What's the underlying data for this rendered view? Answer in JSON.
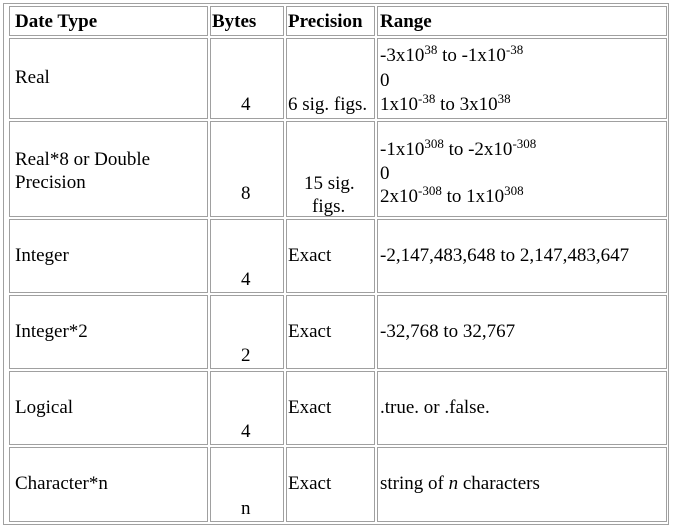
{
  "headers": {
    "date_type": "Date Type",
    "bytes": "Bytes",
    "precision": "Precision",
    "range": "Range"
  },
  "rows": [
    {
      "type": "Real",
      "bytes": "4",
      "precision": "6 sig. figs.",
      "range": [
        {
          "a": "-3x10",
          "e1": "38",
          "b": " to -1x10",
          "e2": "-38"
        },
        {
          "a": "0"
        },
        {
          "a": "1x10",
          "e1": "-38",
          "b": " to 3x10",
          "e2": "38"
        }
      ]
    },
    {
      "type_line1": "Real*8 or Double",
      "type_line2": "Precision",
      "bytes": "8",
      "precision_line1": "15 sig.",
      "precision_line2": "figs.",
      "range": [
        {
          "a": "-1x10",
          "e1": "308",
          "b": " to -2x10",
          "e2": "-308"
        },
        {
          "a": "0"
        },
        {
          "a": "2x10",
          "e1": "-308",
          "b": " to 1x10",
          "e2": "308"
        }
      ]
    },
    {
      "type": "Integer",
      "bytes": "4",
      "precision": "Exact",
      "range": "-2,147,483,648 to 2,147,483,647"
    },
    {
      "type": "Integer*2",
      "bytes": "2",
      "precision": "Exact",
      "range": "-32,768 to 32,767"
    },
    {
      "type": "Logical",
      "bytes": "4",
      "precision": "Exact",
      "range": ".true. or .false."
    },
    {
      "type": "Character*n",
      "bytes": "n",
      "precision": "Exact",
      "range_prefix": "string of ",
      "range_var": "n",
      "range_suffix": " characters"
    }
  ]
}
